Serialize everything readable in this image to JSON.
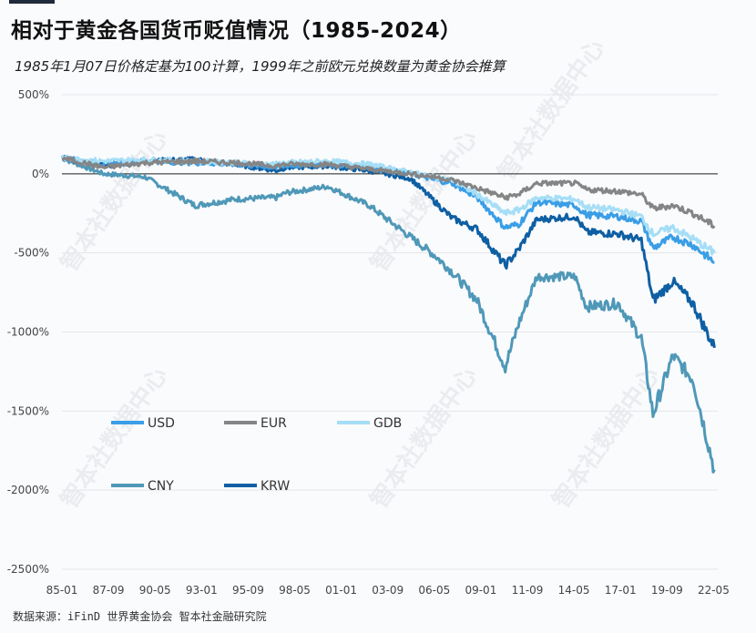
{
  "title": "相对于黄金各国货币贬值情况（1985-2024）",
  "subtitle": "1985年1月07日价格定基为100计算，1999年之前欧元兑换数量为黄金协会推算",
  "source": "数据来源：iFinD 世界黄金协会 智本社金融研究院",
  "watermark": "智本社数据中心",
  "colors": {
    "USD": "#3a9ee6",
    "EUR": "#858585",
    "GDB": "#a5def6",
    "CNY": "#4f98b8",
    "KRW": "#0e5fa3"
  },
  "chart_data": {
    "type": "line",
    "ylim": [
      -2500,
      500
    ],
    "y_ticks": [
      "500%",
      "0%",
      "-500%",
      "-1000%",
      "-1500%",
      "-2000%",
      "-2500%"
    ],
    "x_ticks": [
      "85-01",
      "87-09",
      "90-05",
      "93-01",
      "95-09",
      "98-05",
      "01-01",
      "03-09",
      "06-05",
      "09-01",
      "11-09",
      "14-05",
      "17-01",
      "19-09",
      "22-05"
    ],
    "x": [
      1985.0,
      1987.5,
      1990.0,
      1993.0,
      1995.5,
      1997.9,
      1998.5,
      2001.0,
      2003.5,
      2006.0,
      2007.5,
      2008.5,
      2010.0,
      2011.7,
      2012.5,
      2013.6,
      2015.9,
      2016.6,
      2018.5,
      2019.9,
      2020.6,
      2021.8,
      2023.0,
      2024.3
    ],
    "series": [
      {
        "name": "USD",
        "values": [
          100,
          60,
          80,
          70,
          60,
          40,
          50,
          60,
          40,
          0,
          -40,
          -60,
          -150,
          -340,
          -320,
          -180,
          -200,
          -260,
          -270,
          -300,
          -470,
          -400,
          -450,
          -560
        ]
      },
      {
        "name": "EUR",
        "values": [
          100,
          40,
          70,
          80,
          70,
          50,
          60,
          60,
          30,
          0,
          -20,
          -40,
          -90,
          -150,
          -130,
          -60,
          -60,
          -100,
          -110,
          -130,
          -220,
          -200,
          -250,
          -330
        ]
      },
      {
        "name": "GDB",
        "values": [
          100,
          80,
          90,
          80,
          70,
          60,
          70,
          80,
          60,
          10,
          -20,
          -40,
          -130,
          -250,
          -230,
          -150,
          -160,
          -210,
          -230,
          -270,
          -380,
          -340,
          -410,
          -500
        ]
      },
      {
        "name": "CNY",
        "values": [
          100,
          0,
          -20,
          -200,
          -160,
          -150,
          -120,
          -80,
          -200,
          -400,
          -520,
          -620,
          -800,
          -1220,
          -950,
          -650,
          -650,
          -840,
          -820,
          -1040,
          -1520,
          -1150,
          -1300,
          -1870
        ]
      },
      {
        "name": "KRW",
        "values": [
          100,
          50,
          80,
          90,
          60,
          20,
          40,
          50,
          20,
          -30,
          -180,
          -280,
          -350,
          -580,
          -480,
          -290,
          -270,
          -370,
          -380,
          -420,
          -800,
          -680,
          -820,
          -1100
        ]
      }
    ]
  }
}
